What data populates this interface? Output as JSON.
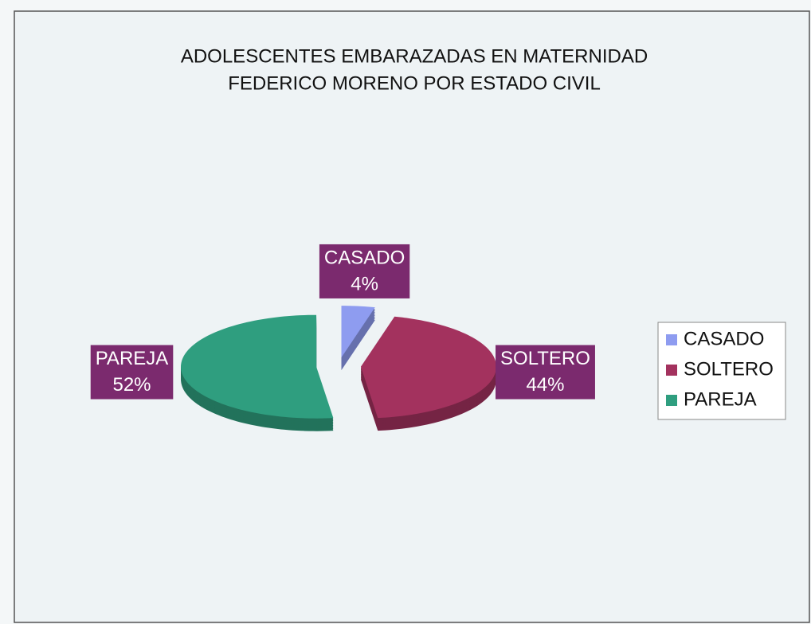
{
  "chart_data": {
    "type": "pie",
    "title": [
      "ADOLESCENTES EMBARAZADAS EN MATERNIDAD",
      "FEDERICO MORENO POR ESTADO CIVIL"
    ],
    "categories": [
      "CASADO",
      "SOLTERO",
      "PAREJA"
    ],
    "values": [
      4,
      44,
      52
    ],
    "value_labels": [
      "4%",
      "44%",
      "52%"
    ],
    "colors": [
      "#8e9cf0",
      "#a3325e",
      "#2f9e7f"
    ],
    "legend": "right"
  }
}
